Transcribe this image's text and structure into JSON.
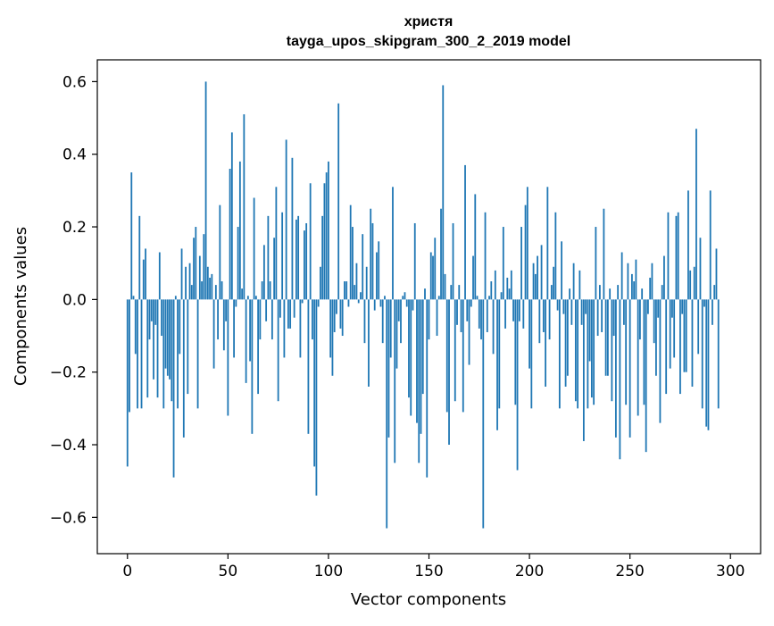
{
  "chart_data": {
    "type": "bar",
    "title": "христя",
    "subtitle": "tayga_upos_skipgram_300_2_2019 model",
    "xlabel": "Vector components",
    "ylabel": "Components values",
    "xlim": [
      -15,
      315
    ],
    "ylim": [
      -0.7,
      0.66
    ],
    "xticks": [
      0,
      50,
      100,
      150,
      200,
      250,
      300
    ],
    "xtick_labels": [
      "0",
      "50",
      "100",
      "150",
      "200",
      "250",
      "300"
    ],
    "yticks": [
      -0.6,
      -0.4,
      -0.2,
      0.0,
      0.2,
      0.4,
      0.6
    ],
    "ytick_labels": [
      "−0.6",
      "−0.4",
      "−0.2",
      "0.0",
      "0.2",
      "0.4",
      "0.6"
    ],
    "bar_color": "#1f77b4",
    "grid": false,
    "values": [
      -0.46,
      -0.31,
      0.35,
      0.01,
      -0.15,
      -0.3,
      0.23,
      -0.3,
      0.11,
      0.14,
      -0.27,
      -0.11,
      -0.06,
      -0.22,
      -0.07,
      -0.27,
      0.13,
      -0.1,
      -0.3,
      -0.19,
      -0.21,
      -0.22,
      -0.28,
      -0.49,
      0.01,
      -0.3,
      -0.15,
      0.14,
      -0.38,
      0.09,
      -0.26,
      0.1,
      0.04,
      0.17,
      0.2,
      -0.3,
      0.12,
      0.05,
      0.18,
      0.6,
      0.09,
      0.06,
      0.07,
      -0.19,
      0.04,
      -0.11,
      0.26,
      0.05,
      -0.14,
      -0.06,
      -0.32,
      0.36,
      0.46,
      -0.16,
      -0.02,
      0.2,
      0.38,
      0.03,
      0.51,
      -0.23,
      0.01,
      -0.17,
      -0.37,
      0.28,
      0.01,
      -0.26,
      -0.11,
      0.05,
      0.15,
      -0.06,
      0.23,
      0.05,
      -0.11,
      0.17,
      0.31,
      -0.28,
      -0.05,
      0.24,
      -0.16,
      0.44,
      -0.08,
      -0.08,
      0.39,
      -0.05,
      0.22,
      0.23,
      -0.16,
      -0.01,
      0.19,
      0.21,
      -0.37,
      0.32,
      -0.11,
      -0.46,
      -0.54,
      -0.02,
      0.09,
      0.23,
      0.32,
      0.35,
      0.38,
      -0.16,
      -0.21,
      -0.09,
      -0.04,
      0.54,
      -0.08,
      -0.1,
      0.05,
      0.05,
      -0.02,
      0.26,
      0.2,
      0.04,
      0.1,
      -0.01,
      0.02,
      0.18,
      -0.12,
      0.09,
      -0.24,
      0.25,
      0.21,
      -0.03,
      0.13,
      0.16,
      -0.02,
      -0.12,
      0.01,
      -0.63,
      -0.38,
      -0.16,
      0.31,
      -0.45,
      -0.19,
      -0.06,
      -0.12,
      0.01,
      0.02,
      -0.02,
      -0.27,
      -0.32,
      -0.03,
      0.21,
      -0.34,
      -0.45,
      -0.37,
      -0.26,
      0.03,
      -0.49,
      -0.11,
      0.13,
      0.12,
      0.17,
      -0.1,
      0.01,
      0.25,
      0.59,
      0.07,
      -0.31,
      -0.4,
      0.04,
      0.21,
      -0.28,
      -0.07,
      0.04,
      -0.09,
      -0.31,
      0.37,
      -0.06,
      -0.18,
      -0.02,
      0.12,
      0.29,
      0.01,
      -0.08,
      -0.11,
      -0.63,
      0.24,
      -0.09,
      0.01,
      0.05,
      -0.15,
      0.08,
      -0.36,
      -0.3,
      0.02,
      0.2,
      -0.08,
      0.06,
      0.03,
      0.08,
      -0.06,
      -0.29,
      -0.47,
      -0.06,
      0.2,
      -0.08,
      0.26,
      0.31,
      -0.19,
      -0.3,
      0.1,
      0.07,
      0.12,
      -0.12,
      0.15,
      -0.09,
      -0.24,
      0.31,
      -0.11,
      0.04,
      0.09,
      0.24,
      -0.03,
      -0.3,
      0.16,
      -0.04,
      -0.24,
      -0.21,
      0.03,
      -0.07,
      0.1,
      -0.28,
      -0.3,
      0.08,
      -0.07,
      -0.39,
      -0.04,
      -0.3,
      -0.17,
      -0.27,
      -0.29,
      0.2,
      -0.1,
      0.04,
      -0.09,
      0.25,
      -0.21,
      -0.21,
      0.03,
      -0.28,
      -0.1,
      -0.38,
      0.04,
      -0.44,
      0.13,
      -0.07,
      -0.29,
      0.1,
      -0.38,
      0.07,
      0.05,
      0.11,
      -0.32,
      -0.11,
      0.03,
      -0.29,
      -0.42,
      -0.04,
      0.06,
      0.1,
      -0.12,
      -0.21,
      -0.05,
      -0.34,
      0.04,
      0.12,
      -0.26,
      0.24,
      -0.19,
      -0.05,
      -0.16,
      0.23,
      0.24,
      -0.26,
      -0.04,
      -0.2,
      -0.2,
      0.3,
      0.08,
      -0.24,
      0.09,
      0.47,
      -0.15,
      0.17,
      -0.3,
      -0.02,
      -0.35,
      -0.36,
      0.3,
      -0.07,
      0.04,
      0.14,
      -0.3
    ]
  }
}
